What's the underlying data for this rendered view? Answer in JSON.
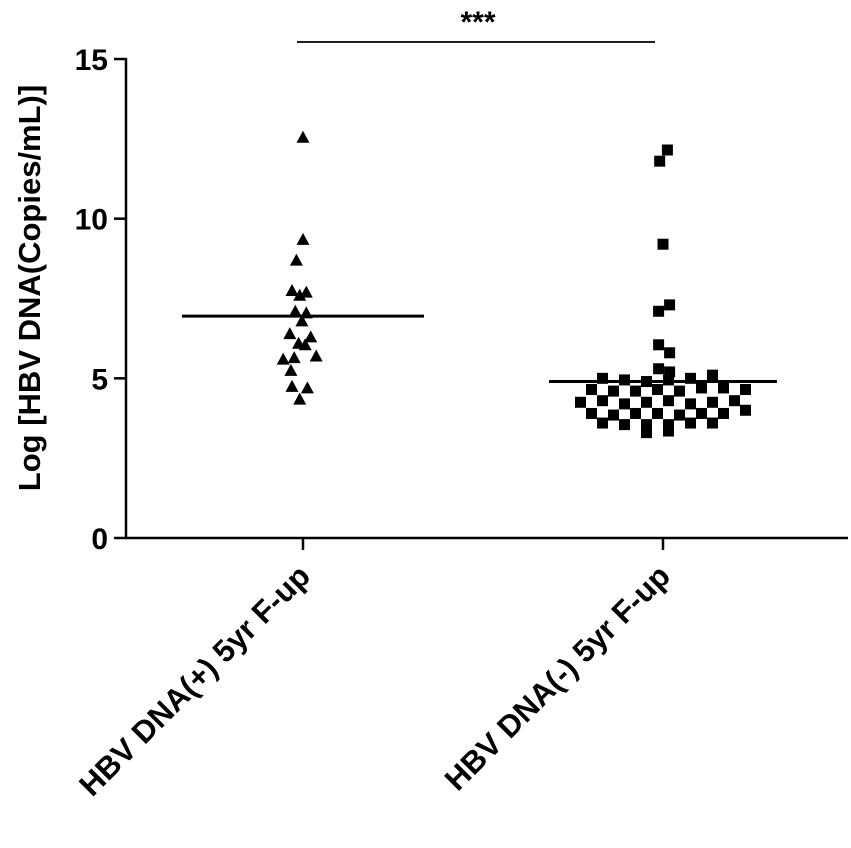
{
  "chart_data": {
    "type": "scatter",
    "ylabel": "Log [HBV DNA(Copies/mL)]",
    "ylim": [
      0,
      15
    ],
    "yticks": [
      0,
      5,
      10,
      15
    ],
    "categories": [
      "HBV DNA(+) 5yr F-up",
      "HBV DNA(-) 5yr F-up"
    ],
    "significance": "***",
    "grid": false,
    "series": [
      {
        "category": "HBV DNA(+) 5yr F-up",
        "marker": "triangle",
        "mean": 6.95,
        "points": [
          [
            0,
            12.55
          ],
          [
            0,
            9.35
          ],
          [
            -0.6,
            8.7
          ],
          [
            -1.0,
            7.75
          ],
          [
            0.3,
            7.7
          ],
          [
            -0.3,
            7.6
          ],
          [
            -0.7,
            7.1
          ],
          [
            0.3,
            7.05
          ],
          [
            -0.1,
            6.8
          ],
          [
            -1.2,
            6.4
          ],
          [
            0.7,
            6.3
          ],
          [
            -0.4,
            6.1
          ],
          [
            0.2,
            6.05
          ],
          [
            -1.8,
            5.6
          ],
          [
            -0.8,
            5.65
          ],
          [
            1.2,
            5.7
          ],
          [
            -1.1,
            5.25
          ],
          [
            -1.0,
            4.75
          ],
          [
            0.4,
            4.7
          ],
          [
            -0.3,
            4.35
          ]
        ]
      },
      {
        "category": "HBV DNA(-) 5yr F-up",
        "marker": "square",
        "mean": 4.9,
        "points": [
          [
            0.4,
            12.15
          ],
          [
            -0.3,
            11.8
          ],
          [
            0,
            9.2
          ],
          [
            0.6,
            7.3
          ],
          [
            -0.4,
            7.1
          ],
          [
            -0.4,
            6.05
          ],
          [
            0.6,
            5.8
          ],
          [
            -0.4,
            5.3
          ],
          [
            0.6,
            5.2
          ],
          [
            -5.5,
            5.0
          ],
          [
            -3.5,
            4.95
          ],
          [
            -1.5,
            4.9
          ],
          [
            0.5,
            4.95
          ],
          [
            2.5,
            5.0
          ],
          [
            4.5,
            5.1
          ],
          [
            -6.5,
            4.65
          ],
          [
            -4.5,
            4.6
          ],
          [
            -2.5,
            4.6
          ],
          [
            -0.5,
            4.65
          ],
          [
            1.5,
            4.6
          ],
          [
            3.5,
            4.7
          ],
          [
            5.5,
            4.7
          ],
          [
            7.5,
            4.65
          ],
          [
            -7.5,
            4.25
          ],
          [
            -5.5,
            4.3
          ],
          [
            -3.5,
            4.2
          ],
          [
            -1.5,
            4.25
          ],
          [
            0.5,
            4.3
          ],
          [
            2.5,
            4.2
          ],
          [
            4.5,
            4.25
          ],
          [
            6.5,
            4.3
          ],
          [
            -6.5,
            3.9
          ],
          [
            -4.5,
            3.85
          ],
          [
            -2.5,
            3.9
          ],
          [
            -0.5,
            3.9
          ],
          [
            1.5,
            3.85
          ],
          [
            3.5,
            3.9
          ],
          [
            5.5,
            3.9
          ],
          [
            7.5,
            4.0
          ],
          [
            -5.5,
            3.6
          ],
          [
            -3.5,
            3.55
          ],
          [
            -1.5,
            3.55
          ],
          [
            0.5,
            3.55
          ],
          [
            2.5,
            3.6
          ],
          [
            4.5,
            3.6
          ],
          [
            -1.5,
            3.3
          ],
          [
            0.5,
            3.35
          ]
        ]
      }
    ]
  }
}
